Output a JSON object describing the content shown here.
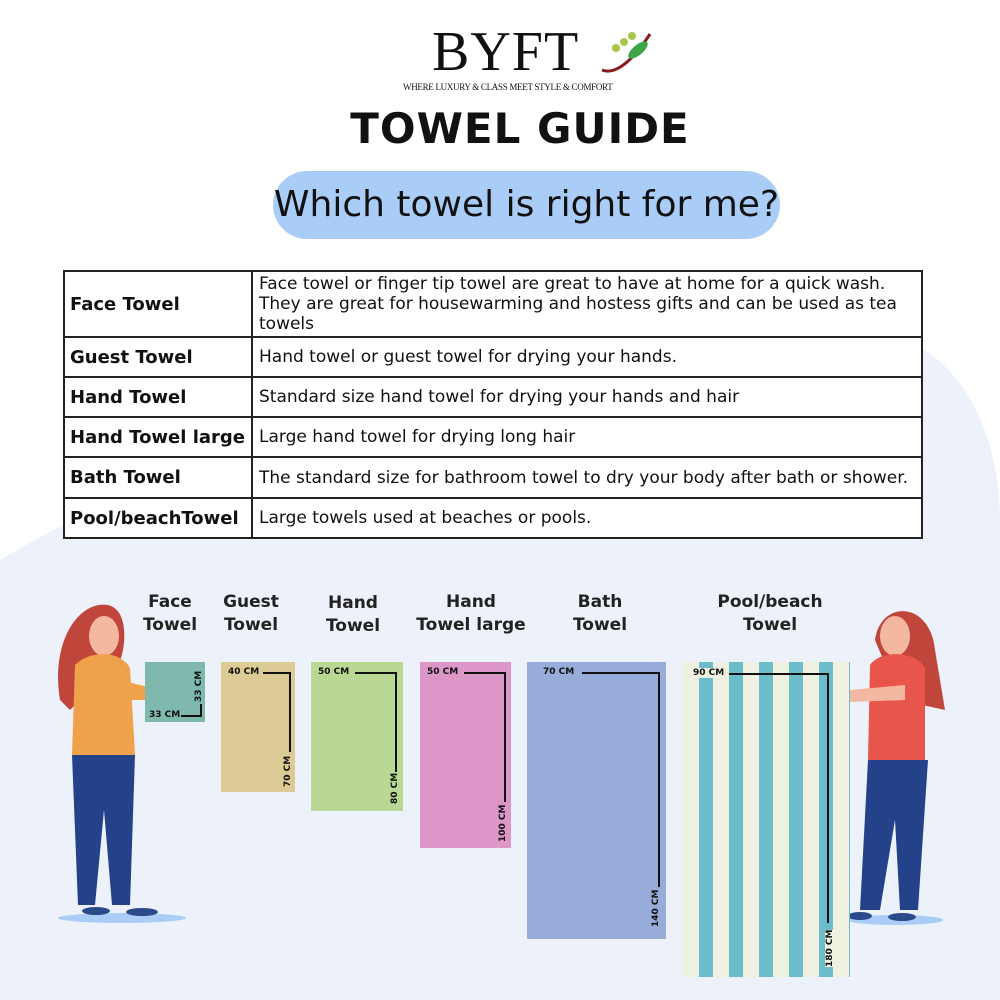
{
  "brand": {
    "name": "BYFT",
    "tagline": "WHERE LUXURY & CLASS MEET STYLE & COMFORT"
  },
  "title": "TOWEL GUIDE",
  "subtitle": "Which towel is right for me?",
  "table": [
    {
      "name": "Face Towel",
      "desc": "Face towel or finger tip towel are great to have at home for a quick wash.",
      "desc2": "They are great for housewarming and hostess gifts and can be used as tea towels"
    },
    {
      "name": "Guest Towel",
      "desc": "Hand towel or guest towel for drying your hands."
    },
    {
      "name": "Hand Towel",
      "desc": "Standard size hand towel for drying your hands and hair"
    },
    {
      "name": "Hand Towel large",
      "desc": "Large hand towel for drying long hair"
    },
    {
      "name": "Bath Towel",
      "desc": "The standard size for bathroom towel to dry your body after bath or shower."
    },
    {
      "name": "Pool/beachTowel",
      "desc": "Large towels used at beaches or pools."
    }
  ],
  "towels": [
    {
      "l1": "Face",
      "l2": "Towel",
      "w": "33 CM",
      "h": "33 CM",
      "color": "#7fb8ac"
    },
    {
      "l1": "Guest",
      "l2": "Towel",
      "w": "40 CM",
      "h": "70 CM",
      "color": "#dccb94"
    },
    {
      "l1": "Hand",
      "l2": "Towel",
      "w": "50 CM",
      "h": "80 CM",
      "color": "#b9d894"
    },
    {
      "l1": "Hand",
      "l2": "Towel large",
      "w": "50 CM",
      "h": "100 CM",
      "color": "#dc97c8"
    },
    {
      "l1": "Bath",
      "l2": "Towel",
      "w": "70 CM",
      "h": "140 CM",
      "color": "#97acd8"
    },
    {
      "l1": "Pool/beach",
      "l2": "Towel",
      "w": "90 CM",
      "h": "180 CM",
      "color": "#6cbccb"
    }
  ]
}
